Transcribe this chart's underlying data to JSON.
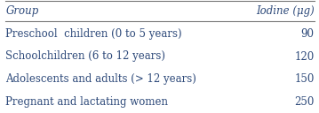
{
  "col1_header": "Group",
  "col2_header": "Iodine (μg)",
  "rows": [
    [
      "Preschool  children (0 to 5 years)",
      "90"
    ],
    [
      "Schoolchildren (6 to 12 years)",
      "120"
    ],
    [
      "Adolescents and adults (> 12 years)",
      "150"
    ],
    [
      "Pregnant and lactating women",
      "250"
    ]
  ],
  "top_line_color": "#777777",
  "bottom_header_line_color": "#777777",
  "text_color": "#2e4a7a",
  "bg_color": "#ffffff",
  "font_size": 8.5,
  "header_font_size": 8.5,
  "figsize": [
    3.59,
    1.28
  ],
  "dpi": 100
}
